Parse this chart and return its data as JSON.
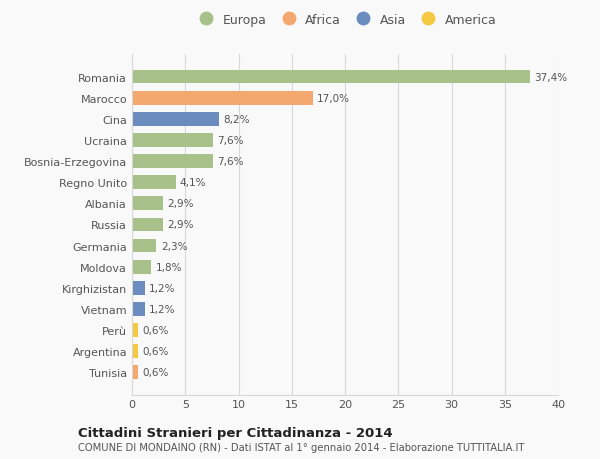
{
  "countries": [
    "Romania",
    "Marocco",
    "Cina",
    "Ucraina",
    "Bosnia-Erzegovina",
    "Regno Unito",
    "Albania",
    "Russia",
    "Germania",
    "Moldova",
    "Kirghizistan",
    "Vietnam",
    "Perù",
    "Argentina",
    "Tunisia"
  ],
  "values": [
    37.4,
    17.0,
    8.2,
    7.6,
    7.6,
    4.1,
    2.9,
    2.9,
    2.3,
    1.8,
    1.2,
    1.2,
    0.6,
    0.6,
    0.6
  ],
  "labels": [
    "37,4%",
    "17,0%",
    "8,2%",
    "7,6%",
    "7,6%",
    "4,1%",
    "2,9%",
    "2,9%",
    "2,3%",
    "1,8%",
    "1,2%",
    "1,2%",
    "0,6%",
    "0,6%",
    "0,6%"
  ],
  "continents": [
    "Europa",
    "Africa",
    "Asia",
    "Europa",
    "Europa",
    "Europa",
    "Europa",
    "Europa",
    "Europa",
    "Europa",
    "Asia",
    "Asia",
    "America",
    "America",
    "Africa"
  ],
  "colors": {
    "Europa": "#a8c08a",
    "Africa": "#f4a870",
    "Asia": "#6b8cbf",
    "America": "#f5c842"
  },
  "legend_order": [
    "Europa",
    "Africa",
    "Asia",
    "America"
  ],
  "title": "Cittadini Stranieri per Cittadinanza - 2014",
  "subtitle": "COMUNE DI MONDAINO (RN) - Dati ISTAT al 1° gennaio 2014 - Elaborazione TUTTITALIA.IT",
  "xlim": [
    0,
    40
  ],
  "xticks": [
    0,
    5,
    10,
    15,
    20,
    25,
    30,
    35,
    40
  ],
  "background_color": "#f9f9f9",
  "grid_color": "#d8d8d8"
}
